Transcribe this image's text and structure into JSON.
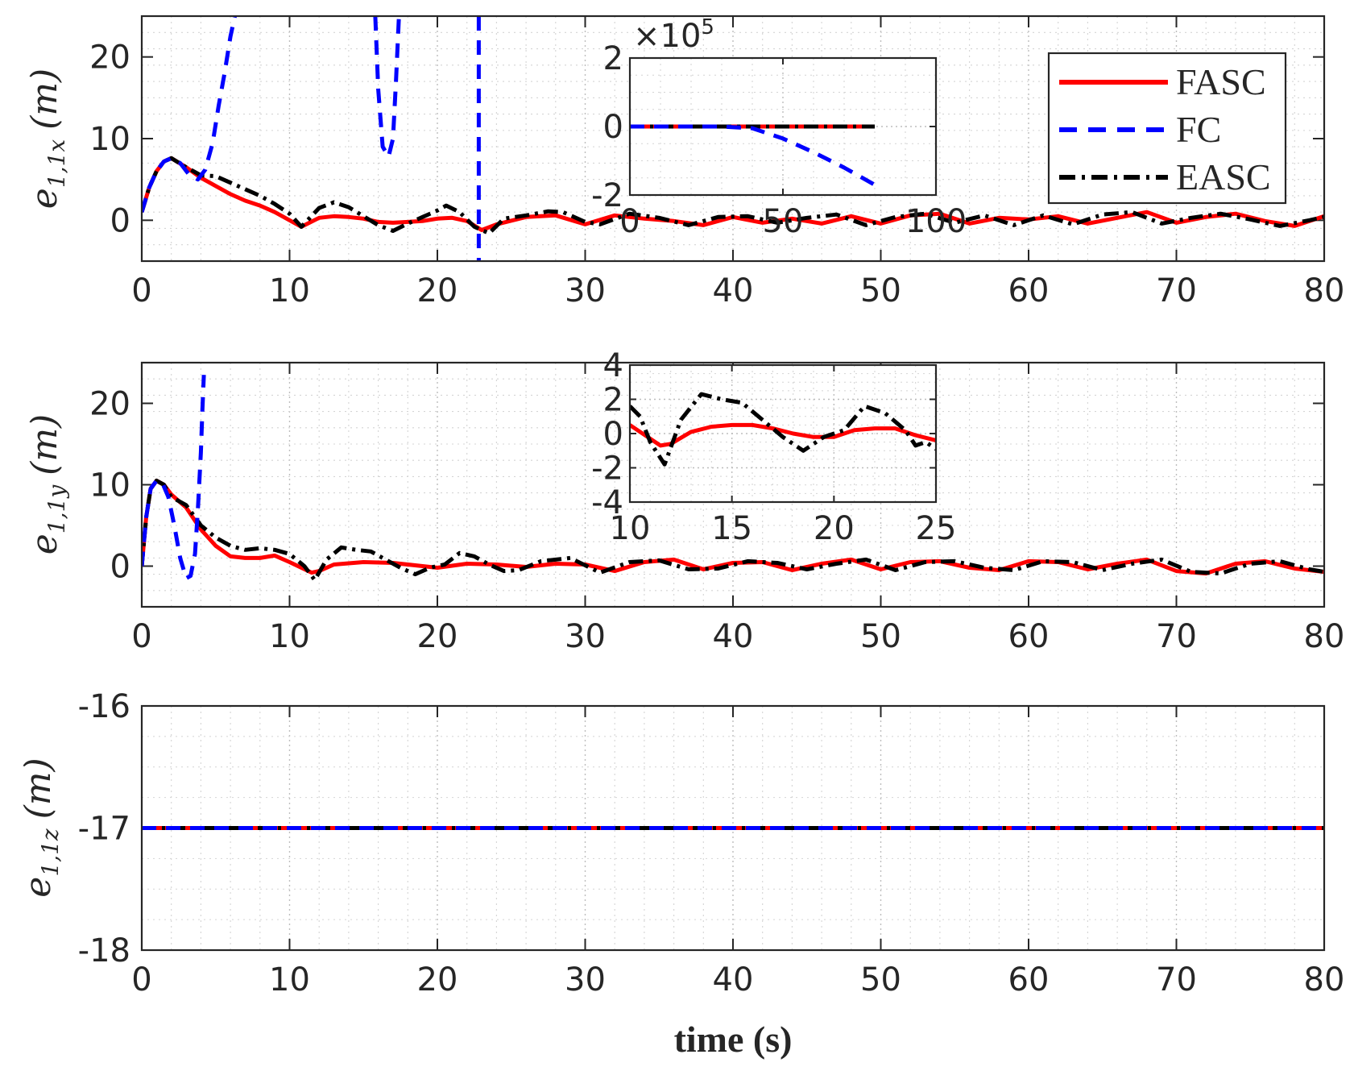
{
  "chart_data": [
    {
      "type": "line",
      "id": "x",
      "ylabel_main": "e",
      "ylabel_sub": "1,1x",
      "ylabel_units": "(m)",
      "xlim": [
        0,
        80
      ],
      "ylim": [
        -5,
        25
      ],
      "xticks": [
        "0",
        "10",
        "20",
        "30",
        "40",
        "50",
        "60",
        "70",
        "80"
      ],
      "yticks": [
        "0",
        "10",
        "20"
      ],
      "grid": true,
      "legend": {
        "position": "top-right",
        "entries": [
          "FASC",
          "FC",
          "EASC"
        ]
      },
      "series": [
        {
          "name": "FASC",
          "color": "#ff0000",
          "style": "solid",
          "x": [
            0,
            0.5,
            1,
            1.5,
            2,
            3,
            4,
            5,
            6,
            7,
            8,
            9,
            10,
            10.8,
            12,
            13,
            14,
            15,
            16,
            17,
            18,
            19,
            20,
            21,
            22,
            23,
            24,
            26,
            28,
            30,
            32,
            34,
            36,
            38,
            40,
            42,
            44,
            46,
            48,
            50,
            52,
            54,
            56,
            58,
            60,
            62,
            64,
            66,
            68,
            70,
            72,
            74,
            76,
            78,
            80
          ],
          "y": [
            1,
            4,
            6,
            7.2,
            7.6,
            6.5,
            5.2,
            4.2,
            3.2,
            2.4,
            1.8,
            1.0,
            0,
            -0.8,
            0.3,
            0.5,
            0.4,
            0.2,
            -0.2,
            -0.3,
            -0.2,
            -0.1,
            0.2,
            0.3,
            -0.1,
            -1.2,
            -0.5,
            0.4,
            0.6,
            -0.5,
            0.6,
            0.2,
            -0.1,
            -0.6,
            0.4,
            -0.3,
            0.2,
            -0.4,
            0.5,
            -0.4,
            0.6,
            0.8,
            -0.4,
            0.3,
            0.1,
            0.5,
            -0.4,
            0.3,
            1.0,
            -0.3,
            0.4,
            0.8,
            -0.1,
            -0.7,
            0.5
          ]
        },
        {
          "name": "FC",
          "color": "#0000ff",
          "style": "dashed",
          "segments": [
            {
              "x": [
                0,
                0.5,
                1,
                1.5,
                2,
                2.6,
                3.2,
                3.8,
                4.3,
                4.8,
                5.2,
                5.6,
                6.0,
                6.3
              ],
              "y": [
                1,
                4,
                6,
                7.2,
                7.6,
                7.0,
                5.6,
                5.0,
                6.2,
                9.5,
                14,
                18,
                22.5,
                25
              ]
            },
            {
              "x": [
                15.8,
                16.0,
                16.3,
                16.7,
                17.0,
                17.2,
                17.4
              ],
              "y": [
                25,
                16,
                9,
                7.8,
                10,
                17,
                25
              ]
            },
            {
              "x": [
                22.8,
                22.8
              ],
              "y": [
                25,
                -5
              ]
            }
          ]
        },
        {
          "name": "EASC",
          "color": "#000000",
          "style": "dashdot",
          "x": [
            0,
            0.5,
            1,
            1.5,
            2,
            3,
            4,
            5,
            6,
            7,
            8,
            9,
            10,
            10.8,
            12,
            13,
            14,
            15,
            16,
            17,
            18,
            19,
            20,
            20.6,
            21.5,
            22.5,
            23.5,
            24.5,
            26,
            27.5,
            28.5,
            30,
            31,
            33,
            35,
            37,
            39,
            41,
            43,
            45,
            47,
            49,
            51,
            53,
            55,
            57,
            59,
            61,
            63,
            65,
            67,
            69,
            71,
            73,
            75,
            77,
            79,
            80
          ],
          "y": [
            1,
            4,
            6,
            7.2,
            7.6,
            6.5,
            5.5,
            5.4,
            4.6,
            3.8,
            3.0,
            2.0,
            0.8,
            -0.8,
            1.5,
            2.2,
            1.6,
            0.5,
            -0.6,
            -1.3,
            -0.4,
            0.4,
            1.2,
            1.8,
            1.0,
            -0.8,
            -1.6,
            0.2,
            0.6,
            1.1,
            1.0,
            -0.2,
            -0.5,
            0.8,
            0.3,
            -0.6,
            0.4,
            0.5,
            -0.3,
            0.3,
            0.7,
            -0.6,
            0.4,
            0.8,
            -0.3,
            0.6,
            -0.6,
            0.6,
            -0.5,
            0.7,
            1.0,
            -0.4,
            0.3,
            0.8,
            0.1,
            -0.7,
            0.0,
            0.4
          ]
        }
      ],
      "inset": {
        "exponent_label": "×10",
        "exponent_power": "5",
        "xlim": [
          0,
          100
        ],
        "ylim": [
          -2,
          2
        ],
        "xticks": [
          "0",
          "50",
          "100"
        ],
        "yticks": [
          "2",
          "0",
          "-2"
        ],
        "series": [
          {
            "name": "FASC",
            "x": [
              0,
              80
            ],
            "y": [
              0,
              0
            ]
          },
          {
            "name": "FC",
            "x": [
              0,
              30,
              40,
              50,
              60,
              70,
              80
            ],
            "y": [
              0,
              0,
              -0.05,
              -0.35,
              -0.75,
              -1.2,
              -1.7
            ]
          },
          {
            "name": "EASC",
            "x": [
              0,
              80
            ],
            "y": [
              0,
              0
            ]
          }
        ]
      }
    },
    {
      "type": "line",
      "id": "y",
      "ylabel_main": "e",
      "ylabel_sub": "1,1y",
      "ylabel_units": "(m)",
      "xlim": [
        0,
        80
      ],
      "ylim": [
        -5,
        25
      ],
      "xticks": [
        "0",
        "10",
        "20",
        "30",
        "40",
        "50",
        "60",
        "70",
        "80"
      ],
      "yticks": [
        "0",
        "10",
        "20"
      ],
      "grid": true,
      "series": [
        {
          "name": "FASC",
          "color": "#ff0000",
          "style": "solid",
          "x": [
            0,
            0.3,
            0.6,
            1,
            1.5,
            2,
            3,
            4,
            5,
            6,
            7,
            8,
            9,
            10,
            11.5,
            12,
            13,
            15,
            17,
            19,
            20,
            22,
            24,
            26,
            28,
            30,
            32,
            34,
            36,
            38,
            40,
            42,
            44,
            46,
            48,
            50,
            52,
            54,
            56,
            58,
            60,
            62,
            64,
            66,
            68,
            70,
            72,
            74,
            76,
            78,
            80
          ],
          "y": [
            0,
            6,
            9.5,
            10.5,
            10,
            8.8,
            7.2,
            4.5,
            2.5,
            1.2,
            1.0,
            1.0,
            1.3,
            0.5,
            -0.8,
            -0.6,
            0.2,
            0.5,
            0.4,
            0,
            -0.2,
            0.3,
            0.2,
            -0.1,
            0.3,
            0.2,
            -0.6,
            0.5,
            0.8,
            -0.4,
            0.4,
            0.5,
            -0.5,
            0.3,
            0.8,
            -0.4,
            0.5,
            0.6,
            -0.2,
            -0.5,
            0.6,
            0.5,
            -0.4,
            0.3,
            0.8,
            -0.6,
            -0.9,
            0.3,
            0.6,
            -0.3,
            -0.7
          ]
        },
        {
          "name": "FC",
          "color": "#0000ff",
          "style": "dashed",
          "x": [
            0,
            0.3,
            0.6,
            1,
            1.4,
            1.8,
            2.2,
            2.6,
            3.0,
            3.3,
            3.6,
            3.8,
            4.0,
            4.1,
            4.2
          ],
          "y": [
            0,
            6,
            9.5,
            10.5,
            10.2,
            8.5,
            5,
            1,
            -1.5,
            -1.2,
            1.5,
            7,
            14,
            19,
            23.5
          ]
        },
        {
          "name": "EASC",
          "color": "#000000",
          "style": "dashdot",
          "x": [
            0,
            0.3,
            0.6,
            1,
            1.5,
            2,
            3,
            4,
            5,
            6,
            7,
            8,
            9,
            10,
            11,
            11.7,
            12.5,
            13.5,
            14.5,
            15.5,
            16.5,
            17.5,
            18.5,
            19.5,
            20.5,
            21.5,
            22.5,
            23.5,
            24.5,
            25.5,
            27,
            29,
            31,
            33,
            35,
            37,
            39,
            41,
            43,
            45,
            47,
            49,
            51,
            53,
            55,
            57,
            59,
            61,
            63,
            65,
            67,
            69,
            71,
            73,
            75,
            77,
            79,
            80
          ],
          "y": [
            0,
            6,
            9.5,
            10.5,
            10,
            8.5,
            7.5,
            5,
            3.5,
            2.5,
            2,
            2.2,
            2.0,
            1.5,
            0,
            -1.7,
            0.8,
            2.3,
            2.0,
            1.8,
            0.8,
            -0.2,
            -1.0,
            -0.2,
            0.2,
            1.6,
            1.2,
            0.2,
            -0.6,
            -0.5,
            0.6,
            1.0,
            -0.8,
            0.5,
            0.7,
            -0.4,
            -0.3,
            0.6,
            0.4,
            -0.4,
            0.3,
            0.8,
            -0.5,
            0.5,
            0.6,
            -0.2,
            -0.5,
            0.6,
            0.5,
            -0.5,
            0.3,
            0.8,
            -0.7,
            -0.9,
            0.3,
            0.6,
            -0.4,
            -0.7
          ]
        }
      ],
      "inset": {
        "xlim": [
          10,
          25
        ],
        "ylim": [
          -4,
          4
        ],
        "xticks": [
          "10",
          "15",
          "20",
          "25"
        ],
        "yticks": [
          "4",
          "2",
          "0",
          "-2",
          "-4"
        ],
        "series": [
          {
            "name": "FASC",
            "x": [
              10,
              11.5,
              12,
              13,
              14,
              15,
              16,
              17,
              18,
              19,
              20,
              21,
              22,
              23,
              24,
              25
            ],
            "y": [
              0.5,
              -0.7,
              -0.6,
              0.1,
              0.4,
              0.5,
              0.5,
              0.3,
              0,
              -0.2,
              -0.2,
              0.2,
              0.3,
              0.3,
              -0.1,
              -0.4
            ]
          },
          {
            "name": "FC",
            "x": [],
            "y": []
          },
          {
            "name": "EASC",
            "x": [
              10,
              10.5,
              11,
              11.7,
              12.5,
              13.5,
              14.5,
              15.5,
              16.5,
              17.5,
              18.5,
              19.5,
              20.5,
              21.5,
              22.5,
              23.5,
              24,
              24.5,
              25
            ],
            "y": [
              1.6,
              1.0,
              -0.5,
              -1.8,
              0.8,
              2.3,
              2.0,
              1.8,
              0.8,
              -0.2,
              -1.0,
              -0.2,
              0.2,
              1.6,
              1.2,
              0.2,
              -0.7,
              -0.5,
              -0.9
            ]
          }
        ]
      }
    },
    {
      "type": "line",
      "id": "z",
      "ylabel_main": "e",
      "ylabel_sub": "1,1z",
      "ylabel_units": "(m)",
      "xlabel": "time (s)",
      "xlim": [
        0,
        80
      ],
      "ylim": [
        -18,
        -16
      ],
      "xticks": [
        "0",
        "10",
        "20",
        "30",
        "40",
        "50",
        "60",
        "70",
        "80"
      ],
      "yticks": [
        "-16",
        "-17",
        "-18"
      ],
      "grid": true,
      "series": [
        {
          "name": "FASC",
          "color": "#ff0000",
          "style": "solid",
          "x": [
            0,
            80
          ],
          "y": [
            -17,
            -17
          ]
        },
        {
          "name": "FC",
          "color": "#0000ff",
          "style": "dashed",
          "x": [
            0,
            80
          ],
          "y": [
            -17,
            -17
          ]
        },
        {
          "name": "EASC",
          "color": "#000000",
          "style": "dashdot",
          "x": [
            0,
            80
          ],
          "y": [
            -17,
            -17
          ]
        }
      ]
    }
  ]
}
